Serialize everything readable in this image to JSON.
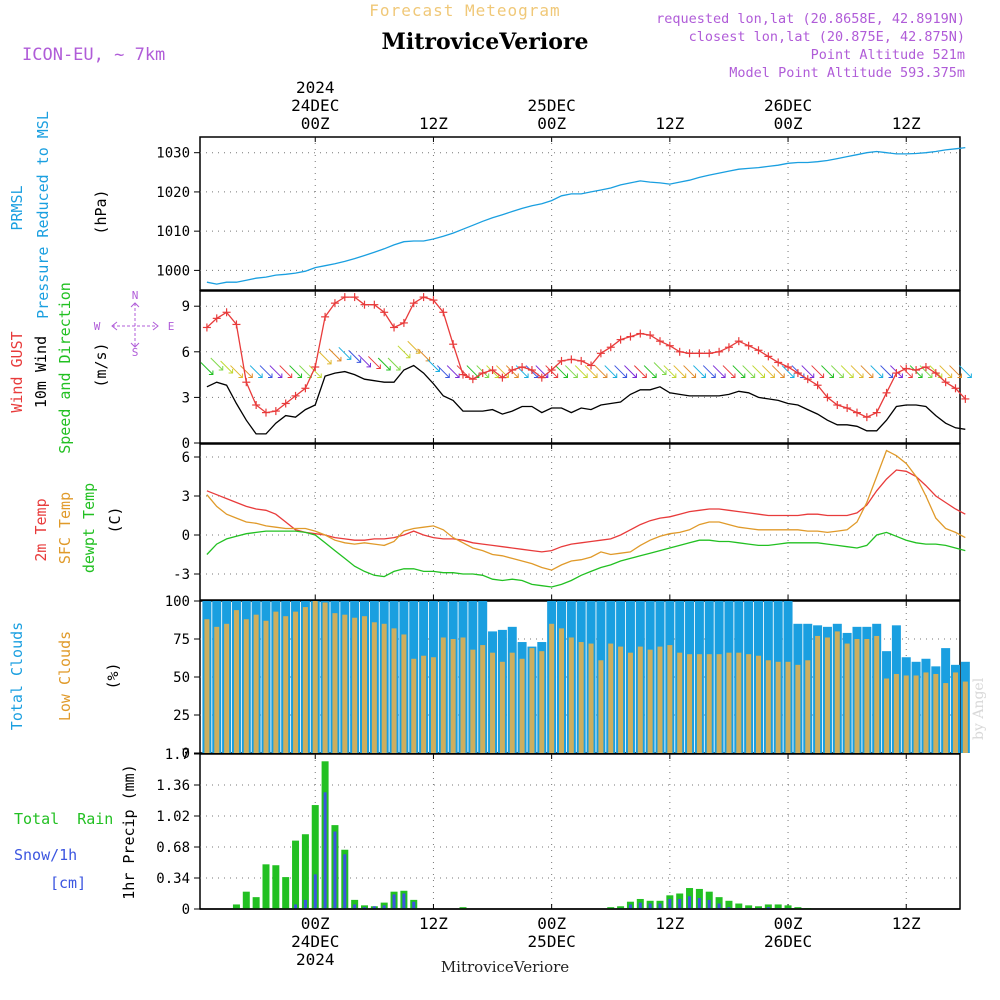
{
  "header": {
    "product": "Forecast Meteogram",
    "location": "MitroviceVeriore",
    "model": "ICON-EU, ~ 7km",
    "requested": "requested lon,lat (20.8658E, 42.8919N)",
    "closest": "closest lon,lat (20.875E, 42.875N)",
    "point_altitude": "Point Altitude 521m",
    "model_altitude": "Model Point Altitude 593.375m",
    "bottom_location": "MitroviceVeriore",
    "watermark": "by Angel"
  },
  "colors": {
    "pressure": "#1a9fe0",
    "gust": "#e83b3b",
    "wind": "#000000",
    "direction_label": "#22c022",
    "temp2m": "#e83b3b",
    "sfc": "#e09a2a",
    "dewpt": "#22c022",
    "total_cloud": "#1a9fe0",
    "low_cloud": "#cdae5e",
    "rain": "#22c022",
    "snow": "#3b55e0",
    "header_purple": "#b05cd8",
    "header_orange": "#f0c070"
  },
  "axes": {
    "top_time_labels": [
      {
        "hour": 24,
        "lines": [
          "2024",
          "24DEC",
          "00Z"
        ]
      },
      {
        "hour": 36,
        "lines": [
          "12Z"
        ]
      },
      {
        "hour": 48,
        "lines": [
          "25DEC",
          "00Z"
        ]
      },
      {
        "hour": 60,
        "lines": [
          "12Z"
        ]
      },
      {
        "hour": 72,
        "lines": [
          "26DEC",
          "00Z"
        ]
      },
      {
        "hour": 84,
        "lines": [
          "12Z"
        ]
      }
    ],
    "bottom_time_labels": [
      {
        "hour": 24,
        "lines": [
          "00Z",
          "24DEC",
          "2024"
        ]
      },
      {
        "hour": 36,
        "lines": [
          "12Z"
        ]
      },
      {
        "hour": 48,
        "lines": [
          "00Z",
          "25DEC"
        ]
      },
      {
        "hour": 60,
        "lines": [
          "12Z"
        ]
      },
      {
        "hour": 72,
        "lines": [
          "00Z",
          "26DEC"
        ]
      },
      {
        "hour": 84,
        "lines": [
          "12Z"
        ]
      }
    ],
    "compass": {
      "n": "N",
      "s": "S",
      "w": "W",
      "e": "E"
    }
  },
  "panel_labels": {
    "pressure": {
      "line1": "PRMSL",
      "line2": "Pressure Reduced to MSL",
      "unit": "(hPa)"
    },
    "wind": {
      "gust": "Wind GUST",
      "speed": "10m Wind",
      "dir": "Speed and Direction",
      "unit": "(m/s)"
    },
    "temp": {
      "t2m": "2m Temp",
      "sfc": "SFC Temp",
      "dew": "dewpt Temp",
      "unit": "(C)"
    },
    "clouds": {
      "total": "Total Clouds",
      "low": "Low Clouds",
      "unit": "(%)"
    },
    "precip": {
      "rain": "Total  Rain",
      "snow": "Snow/1h",
      "cm": "[cm]",
      "unit": "1hr Precip (mm)"
    }
  },
  "chart_data": [
    {
      "type": "line",
      "name": "pressure",
      "x_hours": [
        13,
        14,
        15,
        16,
        17,
        18,
        19,
        20,
        21,
        22,
        23,
        24,
        25,
        26,
        27,
        28,
        29,
        30,
        31,
        32,
        33,
        34,
        35,
        36,
        37,
        38,
        39,
        40,
        41,
        42,
        43,
        44,
        45,
        46,
        47,
        48,
        49,
        50,
        51,
        52,
        53,
        54,
        55,
        56,
        57,
        58,
        59,
        60,
        61,
        62,
        63,
        64,
        65,
        66,
        67,
        68,
        69,
        70,
        71,
        72,
        73,
        74,
        75,
        76,
        77,
        78,
        79,
        80,
        81,
        82,
        83,
        84,
        85,
        86,
        87,
        88,
        89,
        90
      ],
      "values": [
        997,
        996.5,
        997,
        997,
        997.5,
        998,
        998.3,
        998.8,
        999,
        999.3,
        999.8,
        1000.7,
        1001.2,
        1001.7,
        1002.3,
        1003,
        1003.8,
        1004.6,
        1005.5,
        1006.5,
        1007.3,
        1007.5,
        1007.5,
        1008,
        1008.7,
        1009.5,
        1010.5,
        1011.5,
        1012.5,
        1013.4,
        1014.2,
        1015,
        1015.8,
        1016.5,
        1017,
        1017.8,
        1019,
        1019.5,
        1019.5,
        1020,
        1020.5,
        1021,
        1021.8,
        1022.3,
        1022.8,
        1022.5,
        1022.3,
        1022,
        1022.5,
        1023,
        1023.7,
        1024.3,
        1024.8,
        1025.3,
        1025.8,
        1026,
        1026.2,
        1026.5,
        1026.8,
        1027.3,
        1027.5,
        1027.5,
        1027.7,
        1028,
        1028.5,
        1029,
        1029.5,
        1030,
        1030.3,
        1030,
        1029.7,
        1029.7,
        1029.8,
        1030,
        1030.3,
        1030.7,
        1031,
        1031.3
      ],
      "ylim": [
        995,
        1034
      ],
      "yticks": [
        1000,
        1010,
        1020,
        1030
      ]
    },
    {
      "type": "line",
      "name": "wind",
      "x_hours": [
        13,
        14,
        15,
        16,
        17,
        18,
        19,
        20,
        21,
        22,
        23,
        24,
        25,
        26,
        27,
        28,
        29,
        30,
        31,
        32,
        33,
        34,
        35,
        36,
        37,
        38,
        39,
        40,
        41,
        42,
        43,
        44,
        45,
        46,
        47,
        48,
        49,
        50,
        51,
        52,
        53,
        54,
        55,
        56,
        57,
        58,
        59,
        60,
        61,
        62,
        63,
        64,
        65,
        66,
        67,
        68,
        69,
        70,
        71,
        72,
        73,
        74,
        75,
        76,
        77,
        78,
        79,
        80,
        81,
        82,
        83,
        84,
        85,
        86,
        87,
        88,
        89,
        90
      ],
      "gust": [
        7.6,
        8.2,
        8.6,
        7.8,
        4,
        2.5,
        2,
        2.1,
        2.6,
        3.1,
        3.6,
        5,
        8.3,
        9.2,
        9.6,
        9.6,
        9.1,
        9.1,
        8.6,
        7.6,
        7.9,
        9.2,
        9.6,
        9.4,
        8.6,
        6.5,
        4.5,
        4.2,
        4.6,
        4.8,
        4.3,
        4.8,
        5,
        4.8,
        4.3,
        4.8,
        5.4,
        5.5,
        5.4,
        5.1,
        5.9,
        6.3,
        6.8,
        7,
        7.2,
        7.1,
        6.7,
        6.4,
        6,
        5.9,
        5.9,
        5.9,
        6,
        6.3,
        6.7,
        6.4,
        6.1,
        5.7,
        5.3,
        5,
        4.6,
        4.2,
        3.8,
        3,
        2.5,
        2.3,
        2,
        1.7,
        2,
        3.3,
        4.6,
        4.9,
        4.8,
        5,
        4.6,
        4,
        3.6,
        2.9
      ],
      "speed": [
        3.7,
        4,
        3.8,
        2.6,
        1.5,
        0.6,
        0.6,
        1.3,
        1.8,
        1.7,
        2.2,
        2.5,
        4.4,
        4.6,
        4.7,
        4.5,
        4.2,
        4.1,
        4,
        4,
        4.8,
        5.1,
        4.6,
        3.9,
        3.1,
        2.8,
        2.1,
        2.1,
        2.1,
        2.2,
        1.9,
        2.1,
        2.4,
        2.4,
        2,
        2.3,
        2.3,
        2,
        2.3,
        2.2,
        2.5,
        2.6,
        2.7,
        3.2,
        3.5,
        3.5,
        3.7,
        3.3,
        3.2,
        3.1,
        3.1,
        3.1,
        3.1,
        3.2,
        3.4,
        3.3,
        3,
        2.9,
        2.8,
        2.6,
        2.5,
        2.2,
        1.9,
        1.5,
        1.2,
        1.2,
        1.1,
        0.8,
        0.8,
        1.5,
        2.4,
        2.5,
        2.5,
        2.4,
        1.8,
        1.3,
        1,
        0.9
      ],
      "ylim": [
        0,
        10
      ],
      "yticks": [
        0,
        3,
        6,
        9
      ]
    },
    {
      "type": "line",
      "name": "temperature",
      "x_hours": [
        13,
        14,
        15,
        16,
        17,
        18,
        19,
        20,
        21,
        22,
        23,
        24,
        25,
        26,
        27,
        28,
        29,
        30,
        31,
        32,
        33,
        34,
        35,
        36,
        37,
        38,
        39,
        40,
        41,
        42,
        43,
        44,
        45,
        46,
        47,
        48,
        49,
        50,
        51,
        52,
        53,
        54,
        55,
        56,
        57,
        58,
        59,
        60,
        61,
        62,
        63,
        64,
        65,
        66,
        67,
        68,
        69,
        70,
        71,
        72,
        73,
        74,
        75,
        76,
        77,
        78,
        79,
        80,
        81,
        82,
        83,
        84,
        85,
        86,
        87,
        88,
        89,
        90
      ],
      "temp2m": [
        3.4,
        3.1,
        2.8,
        2.5,
        2.2,
        2,
        1.9,
        1.6,
        1,
        0.4,
        0.2,
        0.1,
        0,
        -0.2,
        -0.3,
        -0.4,
        -0.4,
        -0.3,
        -0.3,
        -0.2,
        0,
        0.3,
        0,
        -0.2,
        -0.3,
        -0.3,
        -0.4,
        -0.6,
        -0.7,
        -0.8,
        -0.9,
        -1,
        -1.1,
        -1.2,
        -1.3,
        -1.2,
        -0.9,
        -0.7,
        -0.6,
        -0.5,
        -0.4,
        -0.3,
        0,
        0.4,
        0.8,
        1.1,
        1.3,
        1.4,
        1.6,
        1.8,
        1.9,
        2,
        2,
        1.9,
        1.8,
        1.7,
        1.6,
        1.5,
        1.5,
        1.5,
        1.5,
        1.6,
        1.6,
        1.5,
        1.5,
        1.5,
        1.7,
        2.3,
        3.4,
        4.3,
        5,
        4.9,
        4.5,
        3.8,
        3,
        2.5,
        2,
        1.6
      ],
      "sfc": [
        3.1,
        2.2,
        1.6,
        1.3,
        1,
        0.9,
        0.7,
        0.6,
        0.5,
        0.5,
        0.5,
        0.3,
        0,
        -0.4,
        -0.6,
        -0.7,
        -0.6,
        -0.7,
        -0.8,
        -0.5,
        0.3,
        0.5,
        0.6,
        0.7,
        0.4,
        -0.2,
        -0.6,
        -1,
        -1.2,
        -1.5,
        -1.6,
        -1.8,
        -2,
        -2.2,
        -2.5,
        -2.7,
        -2.3,
        -2,
        -1.9,
        -1.7,
        -1.3,
        -1.5,
        -1.4,
        -1.3,
        -0.8,
        -0.4,
        -0.1,
        0.1,
        0.2,
        0.4,
        0.8,
        1,
        1,
        0.8,
        0.6,
        0.5,
        0.4,
        0.4,
        0.4,
        0.4,
        0.4,
        0.3,
        0.3,
        0.2,
        0.3,
        0.4,
        1,
        2.5,
        4.5,
        6.5,
        6.1,
        5.5,
        4.5,
        3,
        1.3,
        0.5,
        0.2,
        -0.2
      ],
      "dewpt": [
        -1.5,
        -0.7,
        -0.3,
        -0.1,
        0.1,
        0.2,
        0.3,
        0.3,
        0.3,
        0.3,
        0.2,
        0,
        -0.6,
        -1.2,
        -1.8,
        -2.4,
        -2.8,
        -3.1,
        -3.2,
        -2.8,
        -2.6,
        -2.6,
        -2.8,
        -2.8,
        -2.9,
        -2.9,
        -3,
        -3,
        -3.1,
        -3.4,
        -3.5,
        -3.4,
        -3.5,
        -3.8,
        -3.9,
        -4,
        -3.8,
        -3.5,
        -3.1,
        -2.8,
        -2.5,
        -2.3,
        -2,
        -1.8,
        -1.6,
        -1.4,
        -1.2,
        -1,
        -0.8,
        -0.6,
        -0.4,
        -0.4,
        -0.5,
        -0.5,
        -0.6,
        -0.7,
        -0.8,
        -0.8,
        -0.7,
        -0.6,
        -0.6,
        -0.6,
        -0.6,
        -0.7,
        -0.8,
        -0.9,
        -1,
        -0.8,
        0,
        0.2,
        -0.1,
        -0.4,
        -0.6,
        -0.7,
        -0.7,
        -0.8,
        -1,
        -1.2
      ],
      "ylim": [
        -5,
        7
      ],
      "yticks": [
        -3,
        0,
        3,
        6
      ]
    },
    {
      "type": "bar",
      "name": "clouds",
      "x_hours": [
        13,
        14,
        15,
        16,
        17,
        18,
        19,
        20,
        21,
        22,
        23,
        24,
        25,
        26,
        27,
        28,
        29,
        30,
        31,
        32,
        33,
        34,
        35,
        36,
        37,
        38,
        39,
        40,
        41,
        42,
        43,
        44,
        45,
        46,
        47,
        48,
        49,
        50,
        51,
        52,
        53,
        54,
        55,
        56,
        57,
        58,
        59,
        60,
        61,
        62,
        63,
        64,
        65,
        66,
        67,
        68,
        69,
        70,
        71,
        72,
        73,
        74,
        75,
        76,
        77,
        78,
        79,
        80,
        81,
        82,
        83,
        84,
        85,
        86,
        87,
        88,
        89,
        90
      ],
      "total": [
        100,
        100,
        100,
        100,
        100,
        100,
        100,
        100,
        100,
        100,
        100,
        100,
        100,
        100,
        100,
        100,
        100,
        100,
        100,
        100,
        100,
        100,
        100,
        100,
        100,
        100,
        100,
        100,
        100,
        80,
        81,
        83,
        73,
        70,
        73,
        100,
        100,
        100,
        100,
        100,
        100,
        100,
        100,
        100,
        100,
        100,
        100,
        100,
        100,
        100,
        100,
        100,
        100,
        100,
        100,
        100,
        100,
        100,
        100,
        100,
        85,
        85,
        84,
        83,
        85,
        79,
        83,
        83,
        85,
        67,
        84,
        63,
        60,
        62,
        57,
        69,
        58,
        60
      ],
      "low": [
        88,
        83,
        85,
        94,
        88,
        91,
        87,
        93,
        90,
        93,
        96,
        100,
        99,
        92,
        91,
        89,
        90,
        86,
        85,
        82,
        78,
        62,
        64,
        63,
        76,
        75,
        76,
        68,
        71,
        66,
        60,
        66,
        62,
        69,
        67,
        85,
        82,
        76,
        73,
        72,
        61,
        72,
        70,
        66,
        70,
        68,
        70,
        71,
        66,
        65,
        65,
        65,
        65,
        66,
        66,
        65,
        64,
        61,
        60,
        60,
        58,
        61,
        77,
        76,
        80,
        72,
        75,
        75,
        77,
        49,
        52,
        51,
        51,
        53,
        52,
        46,
        53,
        47
      ],
      "ylim": [
        0,
        100
      ],
      "yticks": [
        0,
        25,
        50,
        75,
        100
      ]
    },
    {
      "type": "bar",
      "name": "precipitation",
      "x_hours": [
        13,
        14,
        15,
        16,
        17,
        18,
        19,
        20,
        21,
        22,
        23,
        24,
        25,
        26,
        27,
        28,
        29,
        30,
        31,
        32,
        33,
        34,
        35,
        36,
        37,
        38,
        39,
        40,
        41,
        42,
        43,
        44,
        45,
        46,
        47,
        48,
        49,
        50,
        51,
        52,
        53,
        54,
        55,
        56,
        57,
        58,
        59,
        60,
        61,
        62,
        63,
        64,
        65,
        66,
        67,
        68,
        69,
        70,
        71,
        72,
        73,
        74,
        75,
        76,
        77,
        78,
        79,
        80,
        81,
        82,
        83,
        84,
        85,
        86,
        87,
        88,
        89,
        90
      ],
      "rain": [
        0,
        0,
        0,
        0.05,
        0.19,
        0.13,
        0.49,
        0.48,
        0.35,
        0.75,
        0.82,
        1.14,
        1.62,
        0.92,
        0.65,
        0.1,
        0.04,
        0.03,
        0.07,
        0.19,
        0.2,
        0.1,
        0,
        0,
        0,
        0,
        0.02,
        0,
        0,
        0,
        0,
        0,
        0,
        0,
        0,
        0,
        0,
        0,
        0,
        0,
        0,
        0.02,
        0.03,
        0.08,
        0.11,
        0.09,
        0.09,
        0.15,
        0.17,
        0.23,
        0.22,
        0.19,
        0.13,
        0.09,
        0.06,
        0.04,
        0.03,
        0.05,
        0.05,
        0.04,
        0.02,
        0.01,
        0,
        0,
        0,
        0,
        0,
        0,
        0,
        0,
        0,
        0,
        0,
        0,
        0,
        0,
        0,
        0
      ],
      "snow": [
        0,
        0,
        0,
        0,
        0,
        0,
        0,
        0,
        0,
        0.05,
        0.1,
        0.38,
        1.28,
        0.85,
        0.6,
        0.05,
        0.02,
        0.03,
        0.04,
        0.16,
        0.17,
        0.08,
        0,
        0,
        0,
        0,
        0,
        0,
        0,
        0,
        0,
        0,
        0,
        0,
        0,
        0,
        0,
        0,
        0,
        0,
        0,
        0,
        0.01,
        0.05,
        0.07,
        0.06,
        0.06,
        0.11,
        0.11,
        0.14,
        0.12,
        0.1,
        0.06,
        0.02,
        0.01,
        0.01,
        0.01,
        0.02,
        0.01,
        0.01,
        0,
        0,
        0,
        0,
        0,
        0,
        0,
        0,
        0,
        0,
        0,
        0,
        0,
        0,
        0,
        0,
        0,
        0
      ],
      "ylim": [
        0,
        1.7
      ],
      "yticks": [
        0,
        0.34,
        0.68,
        1.02,
        1.36,
        1.7
      ]
    }
  ]
}
